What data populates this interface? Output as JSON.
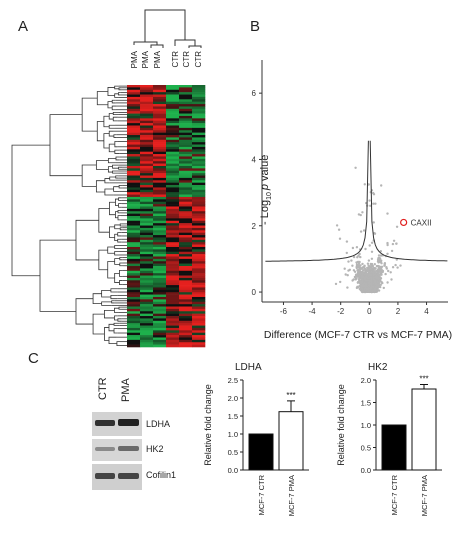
{
  "panels": {
    "a": "A",
    "b": "B",
    "c": "C"
  },
  "heatmap": {
    "columns": [
      "PMA",
      "PMA",
      "PMA",
      "CTR",
      "CTR",
      "CTR"
    ],
    "colors": {
      "up": "#e0201f",
      "down": "#1fb04a",
      "neutral": "#101010"
    }
  },
  "volcano": {
    "ylabel_prefix": "- Log",
    "ylabel_sub": "10",
    "ylabel_p": "p",
    "ylabel_suffix": " value",
    "xlabel": "Difference (MCF-7 CTR vs MCF-7 PMA)",
    "highlight_label": "CAXII",
    "point_color": "#b5b5b5",
    "highlight_color": "#e0201f"
  },
  "blot": {
    "columns": [
      "CTR",
      "PMA"
    ],
    "rows": [
      "LDHA",
      "HK2",
      "Cofilin1"
    ]
  },
  "chart_data": [
    {
      "type": "scatter",
      "title": "",
      "xlabel": "Difference (MCF-7 CTR vs MCF-7 PMA)",
      "ylabel": "- Log10 p value",
      "xlim": [
        -7.5,
        5.5
      ],
      "ylim": [
        -0.3,
        7
      ],
      "xticks": [
        -6,
        -4,
        -2,
        0,
        2,
        4
      ],
      "yticks": [
        0,
        2,
        4,
        6
      ],
      "highlight": {
        "label": "CAXII",
        "x": 2.4,
        "y": 2.1
      }
    },
    {
      "type": "bar",
      "title": "LDHA",
      "ylabel": "Relative fold change",
      "categories": [
        "MCF-7 CTR",
        "MCF-7 PMA"
      ],
      "values": [
        1.0,
        1.62
      ],
      "errors": [
        0,
        0.3
      ],
      "fills": [
        "#000000",
        "#ffffff"
      ],
      "significance": [
        "",
        "***"
      ],
      "ylim": [
        0,
        2.5
      ],
      "yticks": [
        "0.0",
        "0.5",
        "1.0",
        "1.5",
        "2.0",
        "2.5"
      ]
    },
    {
      "type": "bar",
      "title": "HK2",
      "ylabel": "Relative fold change",
      "categories": [
        "MCF-7 CTR",
        "MCF-7 PMA"
      ],
      "values": [
        1.0,
        1.8
      ],
      "errors": [
        0,
        0.1
      ],
      "fills": [
        "#000000",
        "#ffffff"
      ],
      "significance": [
        "",
        "***"
      ],
      "ylim": [
        0,
        2.0
      ],
      "yticks": [
        "0.0",
        "0.5",
        "1.0",
        "1.5",
        "2.0"
      ]
    }
  ]
}
